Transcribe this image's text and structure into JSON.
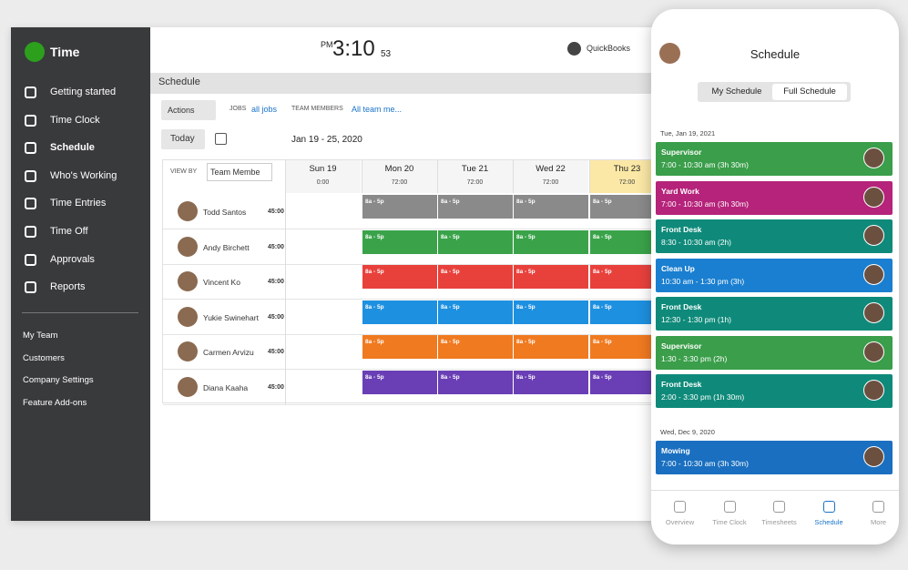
{
  "sidebar": {
    "brand": "Time",
    "nav": [
      "Getting started",
      "Time Clock",
      "Schedule",
      "Who's Working",
      "Time Entries",
      "Time Off",
      "Approvals",
      "Reports"
    ],
    "active": 2,
    "secondary": [
      "My Team",
      "Customers",
      "Company Settings",
      "Feature Add-ons"
    ]
  },
  "header": {
    "period": "PM",
    "time": "3:10",
    "seconds": "53",
    "brand": "QuickBooks"
  },
  "schedule": {
    "title": "Schedule",
    "actions": "Actions",
    "jobs_label": "JOBS",
    "jobs_value": "all jobs",
    "members_label": "TEAM MEMBERS",
    "members_value": "All team me...",
    "today": "Today",
    "range": "Jan 19 - 25, 2020",
    "view_by": "VIEW BY",
    "view_value": "Team Membe",
    "days": [
      {
        "label": "Sun 19",
        "hours": "0:00"
      },
      {
        "label": "Mon 20",
        "hours": "72:00"
      },
      {
        "label": "Tue 21",
        "hours": "72:00"
      },
      {
        "label": "Wed 22",
        "hours": "72:00"
      },
      {
        "label": "Thu 23",
        "hours": "72:00"
      }
    ],
    "highlight_day": 4,
    "rows": [
      {
        "name": "Todd Santos",
        "hours": "45:00",
        "color": "#8a8a8a",
        "shifts": [
          "8a - 5p",
          "8a - 5p",
          "8a - 5p",
          "8a - 5p"
        ]
      },
      {
        "name": "Andy Birchett",
        "hours": "45:00",
        "color": "#3aa34a",
        "shifts": [
          "8a - 5p",
          "8a - 5p",
          "8a - 5p",
          "8a - 5p"
        ]
      },
      {
        "name": "Vincent Ko",
        "hours": "45:00",
        "color": "#e8413c",
        "shifts": [
          "8a - 5p",
          "8a - 5p",
          "8a - 5p",
          "8a - 5p"
        ]
      },
      {
        "name": "Yukie Swinehart",
        "hours": "45:00",
        "color": "#1e90e0",
        "shifts": [
          "8a - 5p",
          "8a - 5p",
          "8a - 5p",
          "8a - 5p"
        ]
      },
      {
        "name": "Carmen Arvizu",
        "hours": "45:00",
        "color": "#f07a20",
        "shifts": [
          "8a - 5p",
          "8a - 5p",
          "8a - 5p",
          "8a - 5p"
        ]
      },
      {
        "name": "Diana Kaaha",
        "hours": "45:00",
        "color": "#6a3fb5",
        "shifts": [
          "8a - 5p",
          "8a - 5p",
          "8a - 5p",
          "8a - 5p"
        ]
      }
    ]
  },
  "phone": {
    "title": "Schedule",
    "tabs": [
      "My Schedule",
      "Full Schedule"
    ],
    "active_tab": 1,
    "groups": [
      {
        "date": "Tue, Jan 19, 2021",
        "cards": [
          {
            "title": "Supervisor",
            "time": "7:00 - 10:30 am (3h 30m)",
            "color": "#3a9e4a"
          },
          {
            "title": "Yard Work",
            "time": "7:00 - 10:30 am (3h 30m)",
            "color": "#b5237a"
          },
          {
            "title": "Front Desk",
            "time": "8:30 - 10:30 am (2h)",
            "color": "#0f8a7a"
          },
          {
            "title": "Clean Up",
            "time": "10:30 am - 1:30 pm (3h)",
            "color": "#1a7fd0"
          },
          {
            "title": "Front Desk",
            "time": "12:30 - 1:30 pm (1h)",
            "color": "#0f8a7a"
          },
          {
            "title": "Supervisor",
            "time": "1:30 - 3:30 pm (2h)",
            "color": "#3a9e4a"
          },
          {
            "title": "Front Desk",
            "time": "2:00 - 3:30 pm (1h 30m)",
            "color": "#0f8a7a"
          }
        ]
      },
      {
        "date": "Wed, Dec 9, 2020",
        "cards": [
          {
            "title": "Mowing",
            "time": "7:00 - 10:30 am (3h 30m)",
            "color": "#1a6fc0"
          }
        ]
      }
    ],
    "nav": [
      "Overview",
      "Time Clock",
      "Timesheets",
      "Schedule",
      "More"
    ],
    "active_nav": 3
  }
}
